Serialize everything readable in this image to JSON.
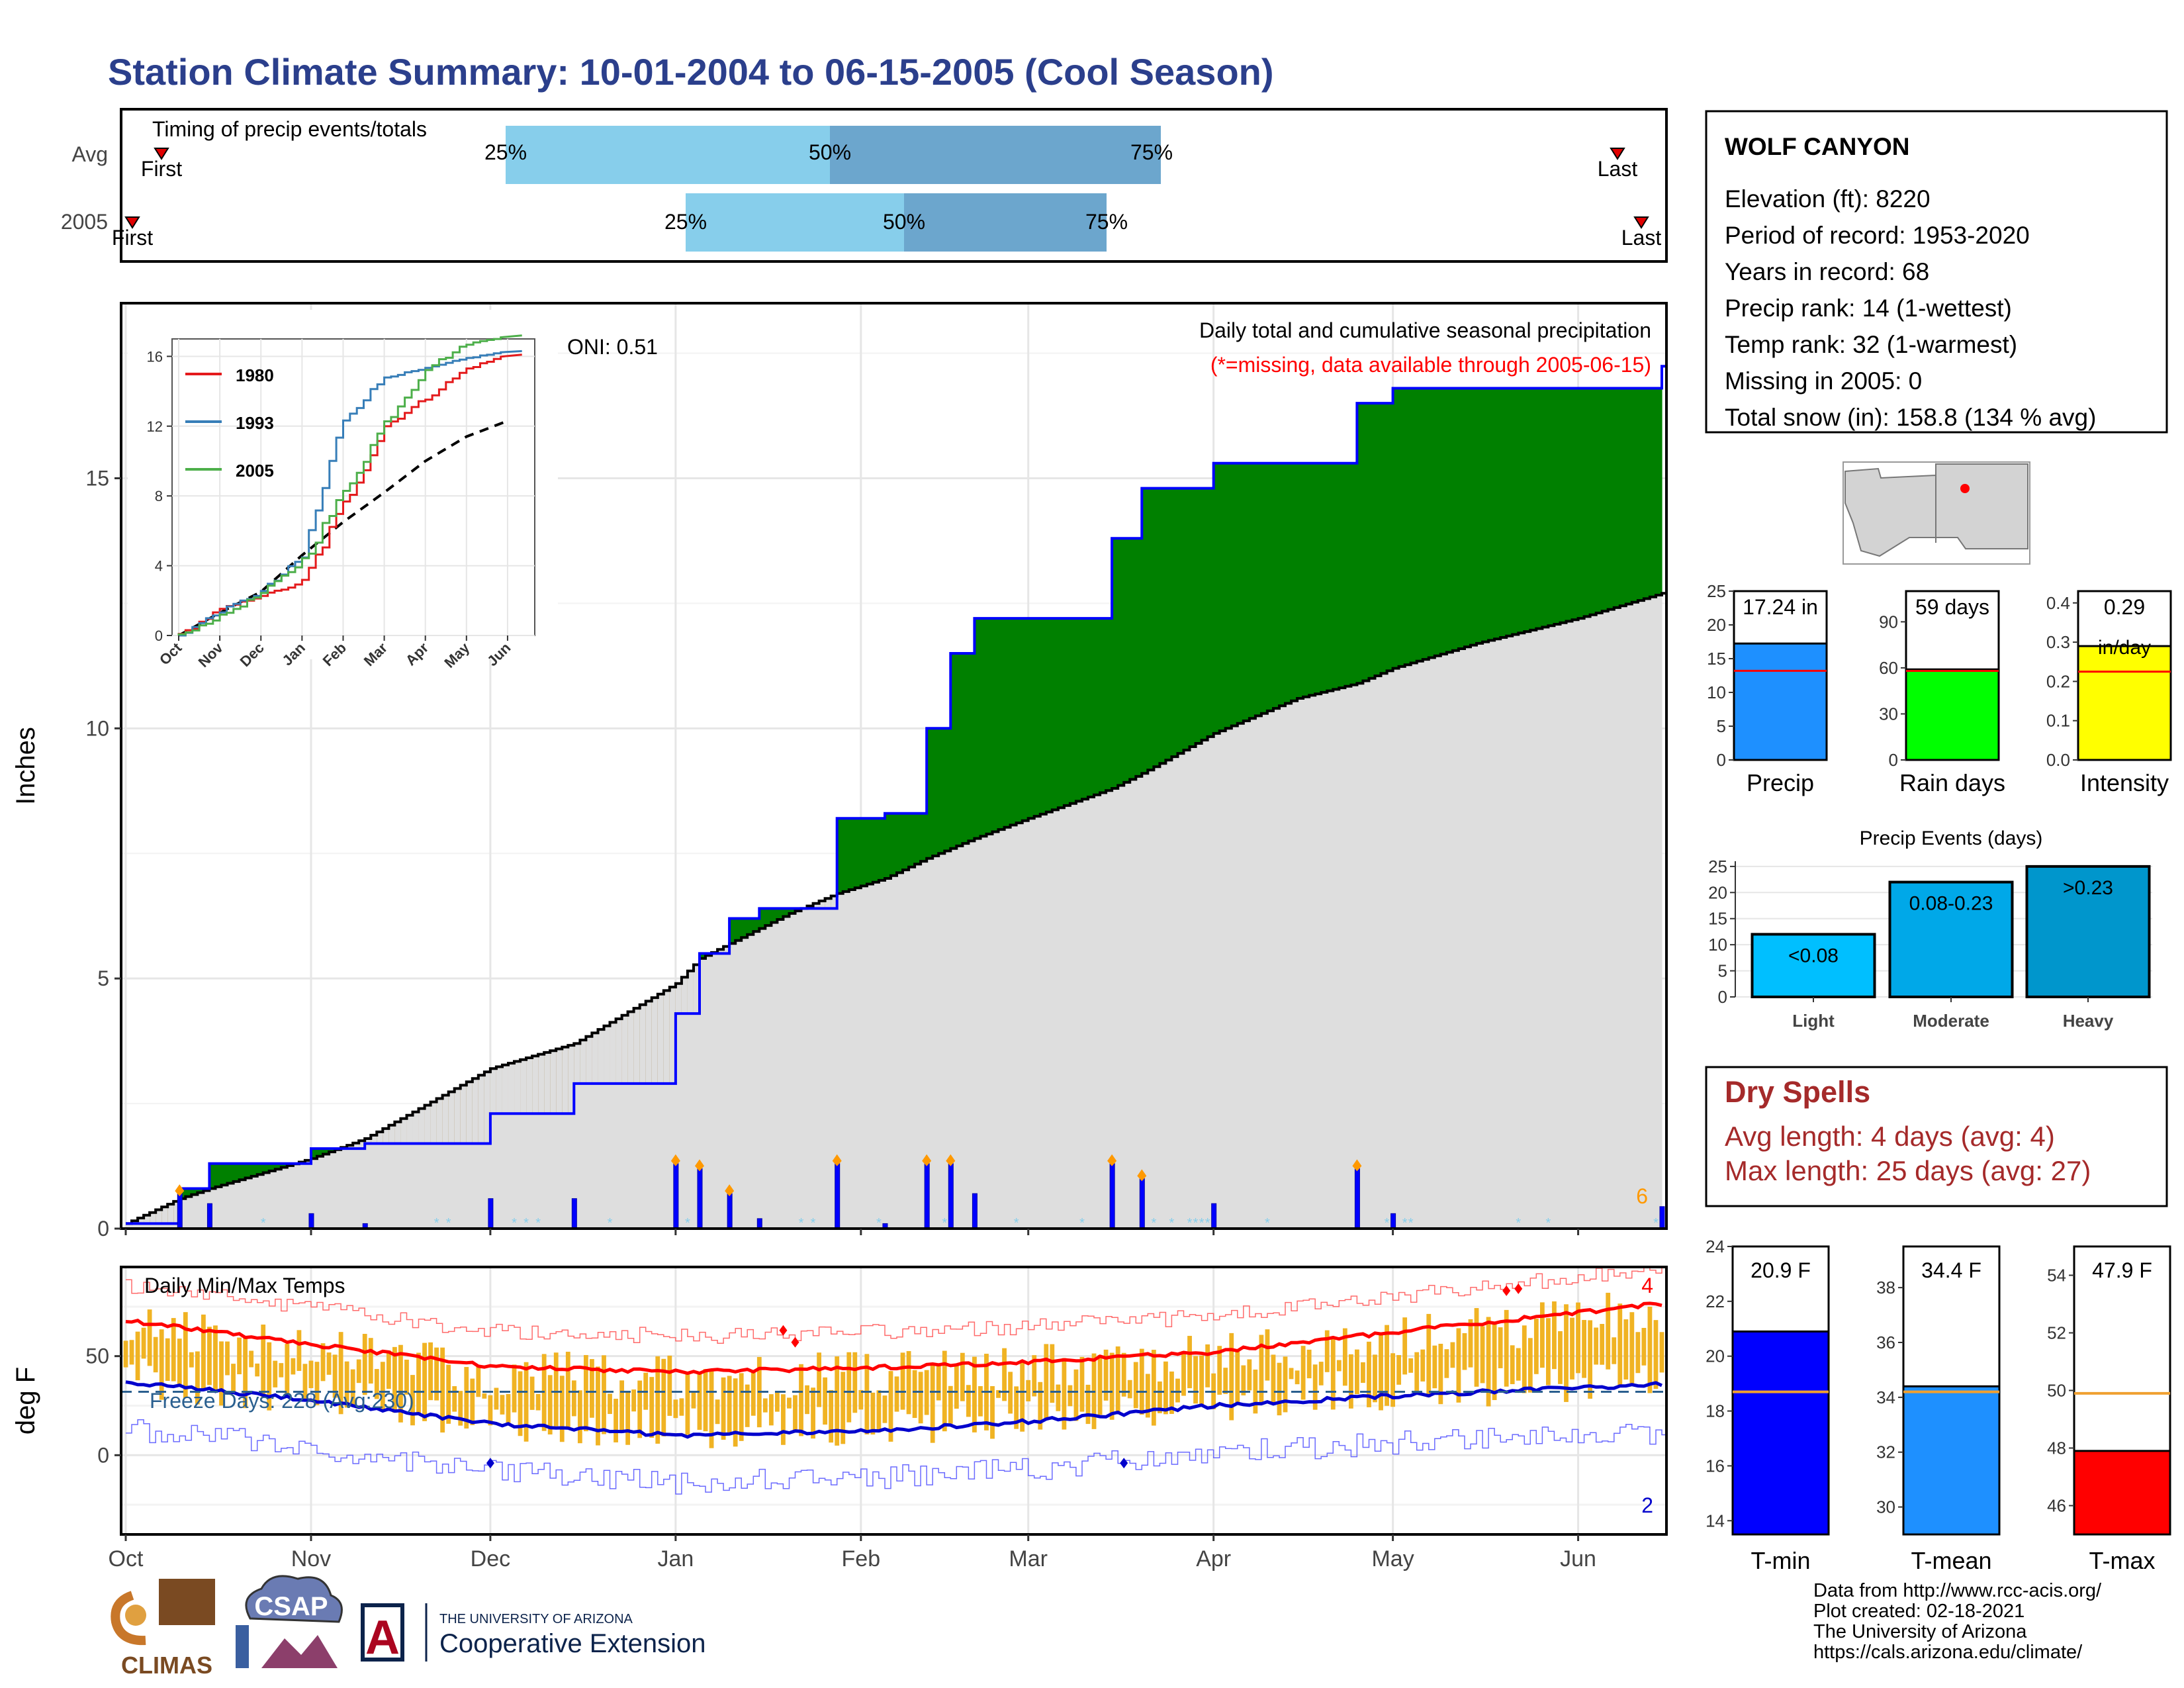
{
  "title": "Station Climate Summary: 10-01-2004 to 06-15-2005 (Cool Season)",
  "colors": {
    "title": "#2b3f8c",
    "precip_green": "#008000",
    "precip_brown": "#7f5200",
    "normal_fill": "#dedede",
    "obs_line": "#0000ff",
    "temp_bars": "#f0b323",
    "red": "#ff0000",
    "blue": "#0000cc",
    "dry_spells": "#a52a2a"
  },
  "timing": {
    "label": "Timing of precip events/totals",
    "rows": [
      {
        "label": "Avg",
        "first": "First",
        "last": "Last",
        "p25": "25%",
        "p50": "50%",
        "p75": "75%"
      },
      {
        "label": "2005",
        "first": "First",
        "last": "Last",
        "p25": "25%",
        "p50": "50%",
        "p75": "75%"
      }
    ]
  },
  "precip_panel": {
    "ylabel": "Inches",
    "yticks": [
      "0",
      "5",
      "10",
      "15"
    ],
    "caption1": "Daily total and cumulative seasonal precipitation",
    "caption2": "(*=missing, data available through 2005-06-15)",
    "oni": "ONI: 0.51",
    "count_label": "6"
  },
  "inset": {
    "yticks": [
      "0",
      "4",
      "8",
      "12",
      "16"
    ],
    "months": [
      "Oct",
      "Nov",
      "Dec",
      "Jan",
      "Feb",
      "Mar",
      "Apr",
      "May",
      "Jun"
    ],
    "legend": [
      {
        "name": "1980",
        "color": "#e41a1c"
      },
      {
        "name": "1993",
        "color": "#377eb8"
      },
      {
        "name": "2005",
        "color": "#4daf4a"
      }
    ]
  },
  "temp_panel": {
    "ylabel": "deg F",
    "title": "Daily Min/Max Temps",
    "freeze": "Freeze Days: 228 (Avg:230)",
    "yticks": [
      "0",
      "50"
    ],
    "count_high": "4",
    "count_low": "2"
  },
  "months": [
    "Oct",
    "Nov",
    "Dec",
    "Jan",
    "Feb",
    "Mar",
    "Apr",
    "May",
    "Jun"
  ],
  "station": {
    "name": "WOLF CANYON",
    "lines": [
      "Elevation (ft): 8220",
      "Period of record: 1953-2020",
      "Years in record: 68",
      "Precip rank: 14 (1-wettest)",
      "Temp rank: 32 (1-warmest)",
      "Missing in 2005: 0",
      "Total snow (in): 158.8 (134 % avg)"
    ]
  },
  "summary_bars": [
    {
      "label": "Precip",
      "value_text": "17.24 in",
      "value": 17.24,
      "avg": 13.2,
      "ymax": 25,
      "ticks": [
        "0",
        "5",
        "10",
        "15",
        "20",
        "25"
      ],
      "color": "#1e90ff"
    },
    {
      "label": "Rain days",
      "value_text": "59 days",
      "value": 59,
      "avg": 58,
      "ymax": 110,
      "ticks": [
        "0",
        "30",
        "60",
        "90"
      ],
      "color": "#00ff00"
    },
    {
      "label": "Intensity",
      "value_text": "0.29",
      "value_text2": "in/day",
      "value": 0.29,
      "avg": 0.225,
      "ymax": 0.43,
      "ticks": [
        "0.0",
        "0.1",
        "0.2",
        "0.3",
        "0.4"
      ],
      "color": "#ffff00"
    }
  ],
  "precip_events": {
    "title": "Precip Events (days)",
    "ticks": [
      "0",
      "5",
      "10",
      "15",
      "20",
      "25"
    ],
    "bars": [
      {
        "category": "Light",
        "label": "<0.08",
        "value": 12,
        "color": "#00bfff"
      },
      {
        "category": "Moderate",
        "label": "0.08-0.23",
        "value": 22,
        "color": "#00a8e8"
      },
      {
        "category": "Heavy",
        "label": ">0.23",
        "value": 25,
        "color": "#0096cc"
      }
    ]
  },
  "dry_spells": {
    "title": "Dry Spells",
    "avg": "Avg length: 4 days (avg: 4)",
    "max": "Max length: 25 days (avg: 27)"
  },
  "temp_bars": [
    {
      "label": "T-min",
      "value_text": "20.9 F",
      "value": 20.9,
      "avg": 18.7,
      "ymin": 13.5,
      "ymax": 24,
      "ticks": [
        "14",
        "16",
        "18",
        "20",
        "22",
        "24"
      ],
      "color": "#0000ff"
    },
    {
      "label": "T-mean",
      "value_text": "34.4 F",
      "value": 34.4,
      "avg": 34.2,
      "ymin": 29,
      "ymax": 39.5,
      "ticks": [
        "30",
        "32",
        "34",
        "36",
        "38"
      ],
      "color": "#1e90ff"
    },
    {
      "label": "T-max",
      "value_text": "47.9 F",
      "value": 47.9,
      "avg": 49.9,
      "ymin": 45,
      "ymax": 55,
      "ticks": [
        "46",
        "48",
        "50",
        "52",
        "54"
      ],
      "color": "#ff0000"
    }
  ],
  "logos": {
    "climas": "CLIMAS",
    "csap": "CSAP",
    "ua_small": "THE UNIVERSITY OF ARIZONA",
    "ua_big": "Cooperative Extension"
  },
  "credits": [
    "Data from http://www.rcc-acis.org/",
    "Plot created: 02-18-2021",
    "The University of Arizona",
    "https://cals.arizona.edu/climate/"
  ],
  "chart_data": [
    {
      "type": "area",
      "title": "Daily total and cumulative seasonal precipitation",
      "ylabel": "Inches",
      "ylim": [
        0,
        18.5
      ],
      "x": [
        "2004-10-01",
        "2004-10-10",
        "2004-10-15",
        "2004-11-01",
        "2004-11-10",
        "2004-12-01",
        "2004-12-15",
        "2005-01-01",
        "2005-01-05",
        "2005-01-10",
        "2005-01-15",
        "2005-01-20",
        "2005-01-28",
        "2005-02-05",
        "2005-02-12",
        "2005-02-16",
        "2005-02-20",
        "2005-03-01",
        "2005-03-15",
        "2005-03-20",
        "2005-04-01",
        "2005-04-15",
        "2005-04-25",
        "2005-05-01",
        "2005-05-15",
        "2005-06-01",
        "2005-06-15"
      ],
      "series": [
        {
          "name": "",
          "values": [
            0.1,
            0.8,
            1.3,
            1.6,
            1.7,
            2.3,
            2.9,
            4.3,
            5.5,
            6.2,
            6.4,
            6.4,
            8.2,
            8.3,
            10.0,
            11.5,
            12.2,
            12.2,
            13.8,
            14.8,
            15.3,
            15.3,
            16.5,
            16.8,
            16.8,
            16.8,
            17.24
          ]
        },
        {
          "name": "",
          "values": [
            0.1,
            0.6,
            0.8,
            1.4,
            1.8,
            3.2,
            3.7,
            4.9,
            5.4,
            5.7,
            6.0,
            6.3,
            6.7,
            7.0,
            7.4,
            7.6,
            7.8,
            8.2,
            8.8,
            9.1,
            9.9,
            10.6,
            10.9,
            11.2,
            11.7,
            12.2,
            12.7
          ]
        }
      ],
      "daily_max": 1.3
    },
    {
      "type": "line",
      "title": "",
      "ylim": [
        0,
        17
      ],
      "categories": [
        "Oct",
        "Nov",
        "Dec",
        "Jan",
        "Feb",
        "Mar",
        "Apr",
        "May",
        "Jun"
      ],
      "series": [
        {
          "name": "1980",
          "values": [
            0.0,
            1.5,
            2.3,
            3.0,
            7.5,
            12.0,
            13.6,
            15.3,
            16.1
          ]
        },
        {
          "name": "1993",
          "values": [
            0.0,
            1.4,
            2.5,
            4.5,
            12.4,
            14.8,
            15.3,
            15.9,
            16.3
          ]
        },
        {
          "name": "2005",
          "values": [
            0.0,
            1.1,
            2.4,
            4.3,
            8.2,
            12.2,
            15.3,
            16.7,
            17.2
          ]
        }
      ]
    },
    {
      "type": "line",
      "title": "Daily Min/Max Temps",
      "ylabel": "deg F",
      "ylim": [
        -40,
        95
      ],
      "categories": [
        "Oct",
        "Nov",
        "Dec",
        "Jan",
        "Feb",
        "Mar",
        "Apr",
        "May",
        "Jun"
      ],
      "series": [
        {
          "name": "",
          "values": [
            68,
            56,
            45,
            42,
            44,
            47,
            52,
            62,
            72
          ]
        },
        {
          "name": "",
          "values": [
            37,
            28,
            16,
            10,
            12,
            17,
            25,
            30,
            34
          ]
        }
      ],
      "freeze_days": 228
    }
  ]
}
